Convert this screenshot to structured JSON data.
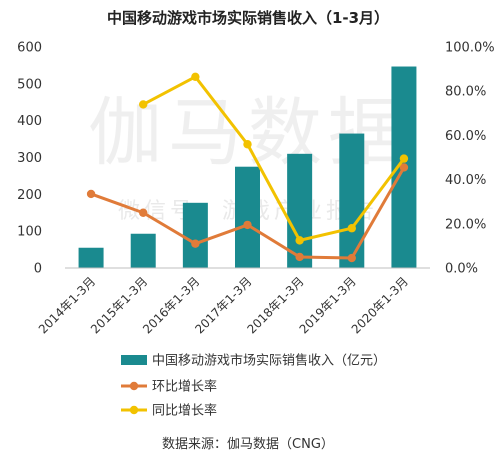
{
  "chart_data": {
    "type": "bar",
    "title": "中国移动游戏市场实际销售收入（1-3月）",
    "categories": [
      "2014年1-3月",
      "2015年1-3月",
      "2016年1-3月",
      "2017年1-3月",
      "2018年1-3月",
      "2019年1-3月",
      "2020年1-3月"
    ],
    "y_left": {
      "min": 0,
      "max": 600,
      "ticks": [
        "0",
        "100",
        "200",
        "300",
        "400",
        "500",
        "600"
      ]
    },
    "y_right": {
      "min": 0,
      "max": 100,
      "ticks": [
        "0.0%",
        "20.0%",
        "40.0%",
        "60.0%",
        "80.0%",
        "100.0%"
      ]
    },
    "grid": false,
    "legend_position": "bottom",
    "series": [
      {
        "name": "中国移动游戏市场实际销售收入（亿元）",
        "kind": "bar",
        "axis": "left",
        "color": "#1a8a8f",
        "values": [
          55,
          93,
          177,
          275,
          310,
          365,
          547
        ]
      },
      {
        "name": "环比增长率",
        "kind": "line",
        "axis": "right",
        "color": "#e07b39",
        "values": [
          33.5,
          25.0,
          11.0,
          19.5,
          5.0,
          4.5,
          45.5
        ]
      },
      {
        "name": "同比增长率",
        "kind": "line",
        "axis": "right",
        "color": "#f2c200",
        "values": [
          null,
          74.0,
          86.5,
          56.0,
          12.5,
          18.0,
          49.5
        ]
      }
    ],
    "watermark": [
      "伽马数据",
      "微信号：游戏产业报告"
    ],
    "source": "数据来源：伽马数据（CNG）"
  }
}
